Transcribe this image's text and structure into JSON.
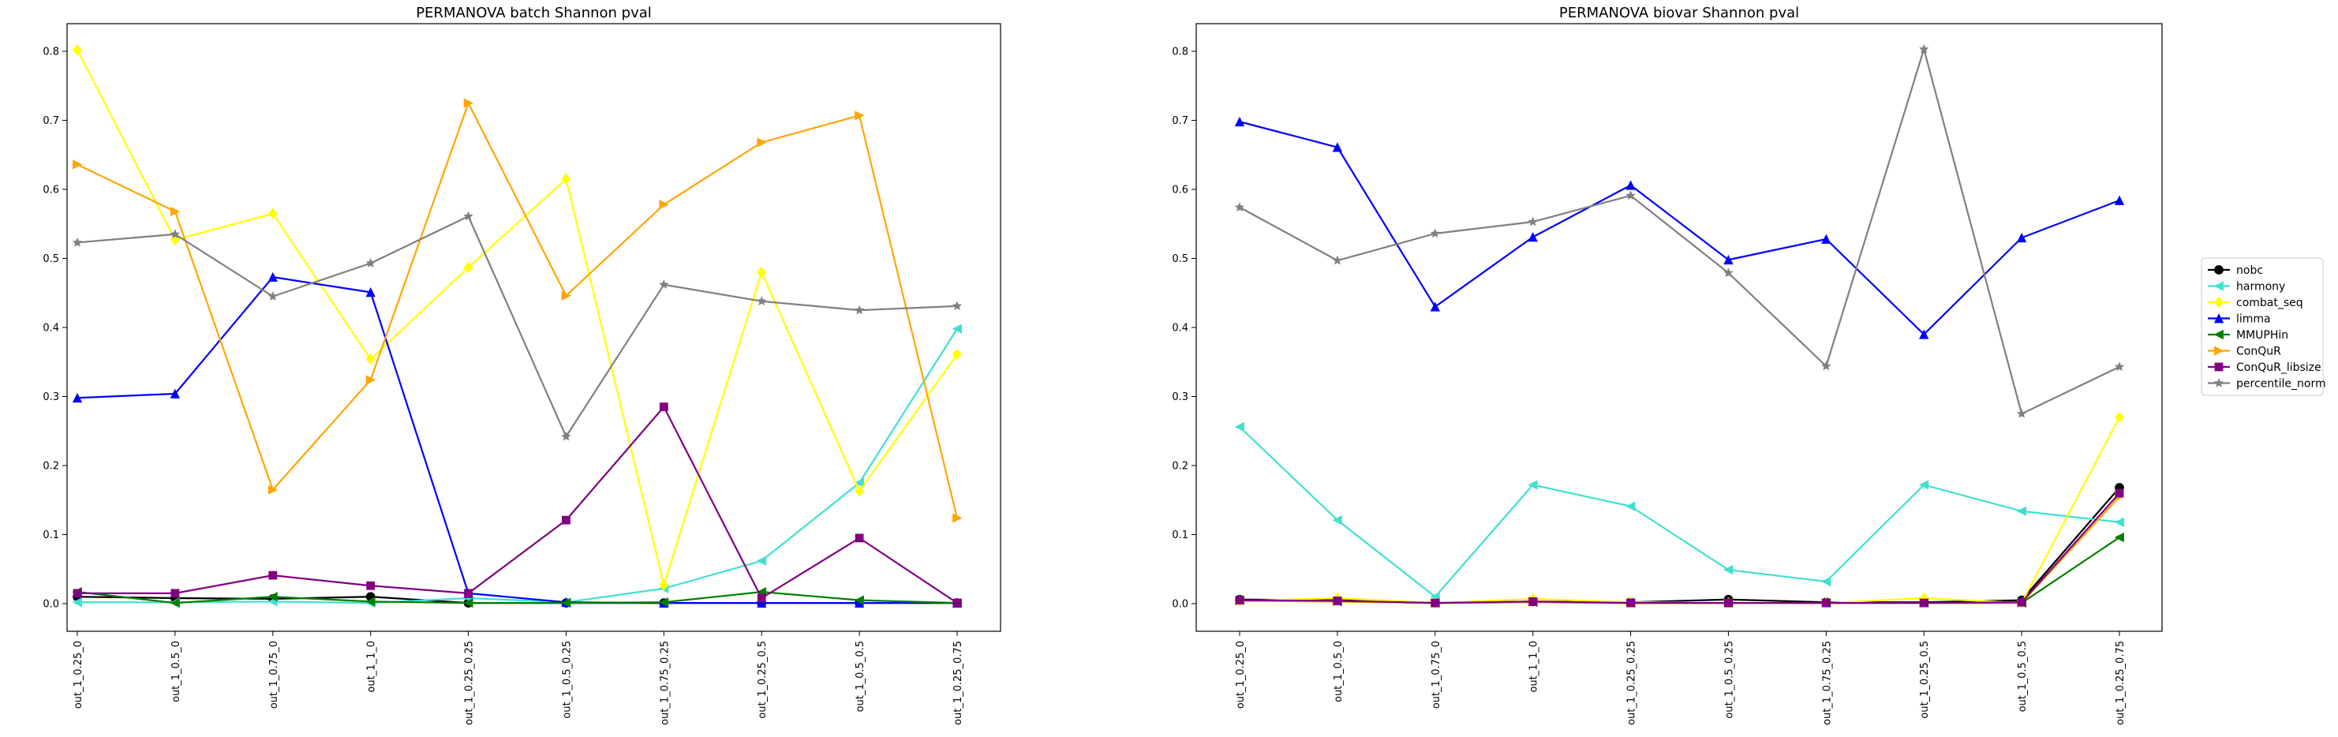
{
  "chart_data": [
    {
      "type": "line",
      "title": "PERMANOVA batch Shannon pval",
      "xlabel": "",
      "ylabel": "",
      "ylim": [
        -0.04,
        0.84
      ],
      "yticks": [
        "0.0",
        "0.1",
        "0.2",
        "0.3",
        "0.4",
        "0.5",
        "0.6",
        "0.7",
        "0.8"
      ],
      "grid": false,
      "categories": [
        "out_1_0.25_0",
        "out_1_0.5_0",
        "out_1_0.75_0",
        "out_1_1_0",
        "out_1_0.25_0.25",
        "out_1_0.5_0.25",
        "out_1_0.75_0.25",
        "out_1_0.25_0.5",
        "out_1_0.5_0.5",
        "out_1_0.25_0.75"
      ],
      "series": [
        {
          "name": "nobc",
          "color": "#000000",
          "marker": "circle",
          "values": [
            0.01,
            0.008,
            0.007,
            0.01,
            0.001,
            0.001,
            0.001,
            0.001,
            0.001,
            0.001
          ]
        },
        {
          "name": "harmony",
          "color": "#40e0d0",
          "marker": "tri-left",
          "values": [
            0.002,
            0.002,
            0.003,
            0.001,
            0.008,
            0.002,
            0.022,
            0.062,
            0.175,
            0.398
          ]
        },
        {
          "name": "combat_seq",
          "color": "#ffff00",
          "marker": "diamond",
          "values": [
            0.802,
            0.527,
            0.565,
            0.354,
            0.487,
            0.615,
            0.027,
            0.48,
            0.163,
            0.361
          ]
        },
        {
          "name": "limma",
          "color": "#0000ff",
          "marker": "tri-up",
          "values": [
            0.298,
            0.304,
            0.473,
            0.451,
            0.015,
            0.002,
            0.001,
            0.001,
            0.001,
            0.001
          ]
        },
        {
          "name": "MMUPHin",
          "color": "#008000",
          "marker": "tri-left",
          "values": [
            0.017,
            0.001,
            0.01,
            0.003,
            0.001,
            0.001,
            0.002,
            0.017,
            0.005,
            0.001
          ]
        },
        {
          "name": "ConQuR",
          "color": "#ffa500",
          "marker": "tri-right",
          "values": [
            0.636,
            0.568,
            0.165,
            0.324,
            0.725,
            0.446,
            0.578,
            0.668,
            0.707,
            0.124
          ]
        },
        {
          "name": "ConQuR_libsize",
          "color": "#800080",
          "marker": "square",
          "values": [
            0.015,
            0.015,
            0.041,
            0.026,
            0.015,
            0.121,
            0.285,
            0.008,
            0.095,
            0.001
          ]
        },
        {
          "name": "percentile_norm",
          "color": "#808080",
          "marker": "star",
          "values": [
            0.523,
            0.535,
            0.445,
            0.493,
            0.561,
            0.242,
            0.462,
            0.438,
            0.425,
            0.431
          ]
        }
      ]
    },
    {
      "type": "line",
      "title": "PERMANOVA biovar Shannon pval",
      "xlabel": "",
      "ylabel": "",
      "ylim": [
        -0.04,
        0.84
      ],
      "yticks": [
        "0.0",
        "0.1",
        "0.2",
        "0.3",
        "0.4",
        "0.5",
        "0.6",
        "0.7",
        "0.8"
      ],
      "grid": false,
      "categories": [
        "out_1_0.25_0",
        "out_1_0.5_0",
        "out_1_0.75_0",
        "out_1_1_0",
        "out_1_0.25_0.25",
        "out_1_0.5_0.25",
        "out_1_0.75_0.25",
        "out_1_0.25_0.5",
        "out_1_0.5_0.5",
        "out_1_0.25_0.75"
      ],
      "legend_position": "right-outside",
      "series": [
        {
          "name": "nobc",
          "color": "#000000",
          "marker": "circle",
          "values": [
            0.006,
            0.005,
            0.001,
            0.003,
            0.002,
            0.006,
            0.002,
            0.002,
            0.005,
            0.168
          ]
        },
        {
          "name": "harmony",
          "color": "#40e0d0",
          "marker": "tri-left",
          "values": [
            0.256,
            0.121,
            0.01,
            0.172,
            0.141,
            0.049,
            0.032,
            0.172,
            0.134,
            0.118
          ]
        },
        {
          "name": "combat_seq",
          "color": "#ffff00",
          "marker": "diamond",
          "values": [
            0.004,
            0.008,
            0.001,
            0.007,
            0.002,
            0.001,
            0.001,
            0.008,
            0.001,
            0.27
          ]
        },
        {
          "name": "limma",
          "color": "#0000ff",
          "marker": "tri-up",
          "values": [
            0.698,
            0.661,
            0.43,
            0.531,
            0.606,
            0.498,
            0.528,
            0.39,
            0.53,
            0.584
          ]
        },
        {
          "name": "MMUPHin",
          "color": "#008000",
          "marker": "tri-left",
          "values": [
            0.005,
            0.003,
            0.001,
            0.002,
            0.001,
            0.001,
            0.001,
            0.001,
            0.001,
            0.096
          ]
        },
        {
          "name": "ConQuR",
          "color": "#ffa500",
          "marker": "tri-right",
          "values": [
            0.004,
            0.003,
            0.001,
            0.002,
            0.001,
            0.001,
            0.001,
            0.001,
            0.001,
            0.155
          ]
        },
        {
          "name": "ConQuR_libsize",
          "color": "#800080",
          "marker": "square",
          "values": [
            0.005,
            0.004,
            0.001,
            0.003,
            0.001,
            0.001,
            0.001,
            0.001,
            0.002,
            0.16
          ]
        },
        {
          "name": "percentile_norm",
          "color": "#808080",
          "marker": "star",
          "values": [
            0.574,
            0.497,
            0.536,
            0.553,
            0.591,
            0.479,
            0.344,
            0.803,
            0.275,
            0.343
          ]
        }
      ]
    }
  ]
}
